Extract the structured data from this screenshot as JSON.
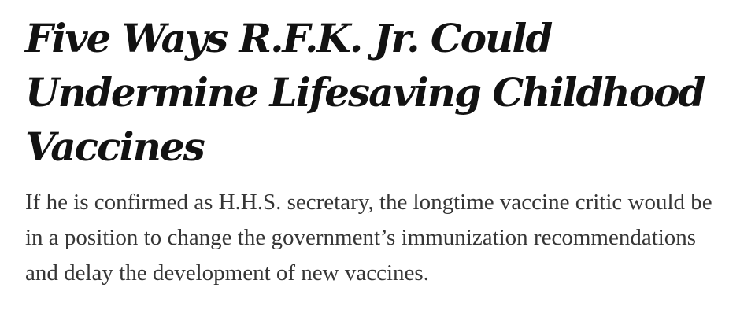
{
  "article": {
    "headline": "Five Ways R.F.K. Jr. Could Undermine Lifesaving Childhood Vaccines",
    "summary": "If he is confirmed as H.H.S. secretary, the longtime vaccine critic would be in a position to change the government’s immunization recommendations and delay the development of new vaccines."
  }
}
